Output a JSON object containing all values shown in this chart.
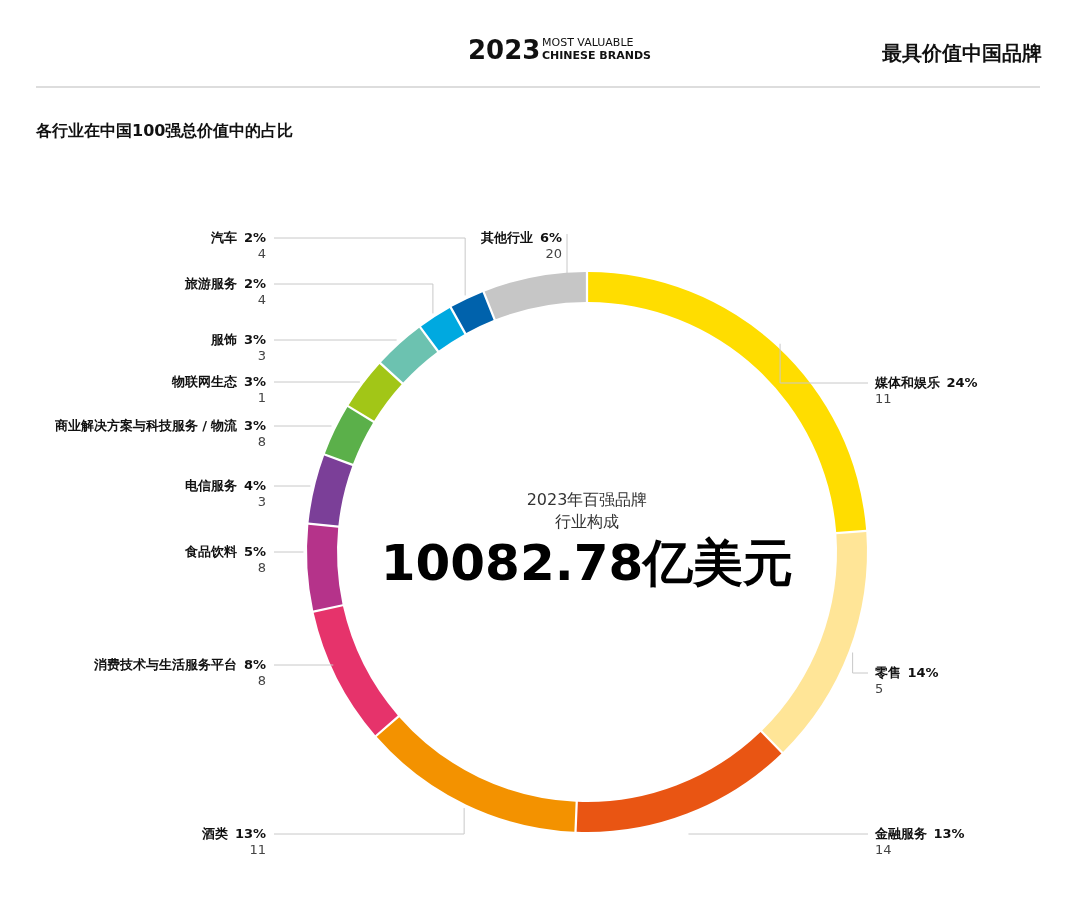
{
  "chart_data": {
    "type": "donut",
    "title": "各行业在中国100强总价值中的占比",
    "subtitle": "最具价值中国品牌",
    "categories": [
      "媒体和娱乐",
      "零售",
      "金融服务",
      "酒类",
      "消费技术与生活服务平台",
      "食品饮料",
      "电信服务",
      "商业解决方案与科技服务 / 物流",
      "物联网生态",
      "服饰",
      "旅游服务",
      "汽车",
      "其他行业"
    ],
    "values": [
      24,
      14,
      13,
      13,
      8,
      5,
      4,
      3,
      3,
      3,
      2,
      2,
      6
    ],
    "value_labels": [
      "24%",
      "14%",
      "13%",
      "13%",
      "8%",
      "5%",
      "4%",
      "3%",
      "3%",
      "3%",
      "2%",
      "2%",
      "6%"
    ],
    "colors": [
      "#ffdd00",
      "#ffe597",
      "#e95513",
      "#f39200",
      "#e6336b",
      "#b5338a",
      "#7b3f98",
      "#5bb04a",
      "#a2c617",
      "#6cc2b0",
      "#00a9e0",
      "#0062ac",
      "#c6c6c6"
    ],
    "annotations": [
      "11",
      "5",
      "14",
      "11",
      "8",
      "8",
      "3",
      "8",
      "1",
      "3",
      "4",
      "4",
      "20",
      "2023",
      "MOST VALUABLE",
      "CHINESE BRANDS",
      "2023年百强品牌",
      "行业构成",
      "10082.78亿美元"
    ]
  }
}
